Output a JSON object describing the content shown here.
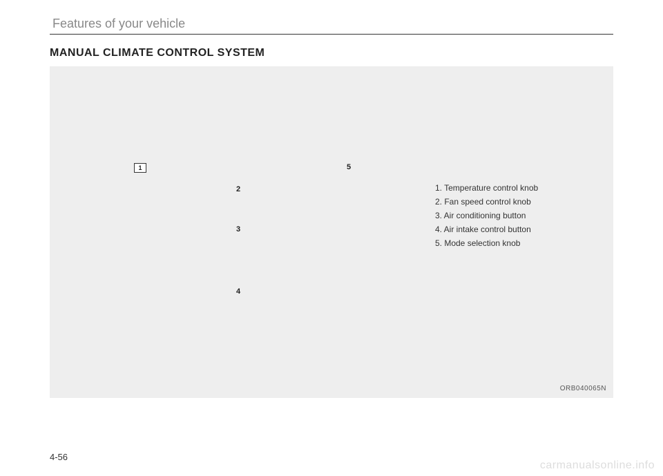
{
  "header": {
    "section_title": "Features of your vehicle"
  },
  "main": {
    "heading": "MANUAL CLIMATE CONTROL SYSTEM",
    "callouts": {
      "n1": "1",
      "n2": "2",
      "n3": "3",
      "n4": "4",
      "n5": "5"
    },
    "legend": {
      "l1": "1. Temperature control knob",
      "l2": "2. Fan speed control knob",
      "l3": "3. Air conditioning button",
      "l4": "4. Air intake control button",
      "l5": "5. Mode selection knob"
    },
    "figure_code": "ORB040065N"
  },
  "footer": {
    "page_number": "4-56",
    "watermark": "carmanualsonline.info"
  }
}
